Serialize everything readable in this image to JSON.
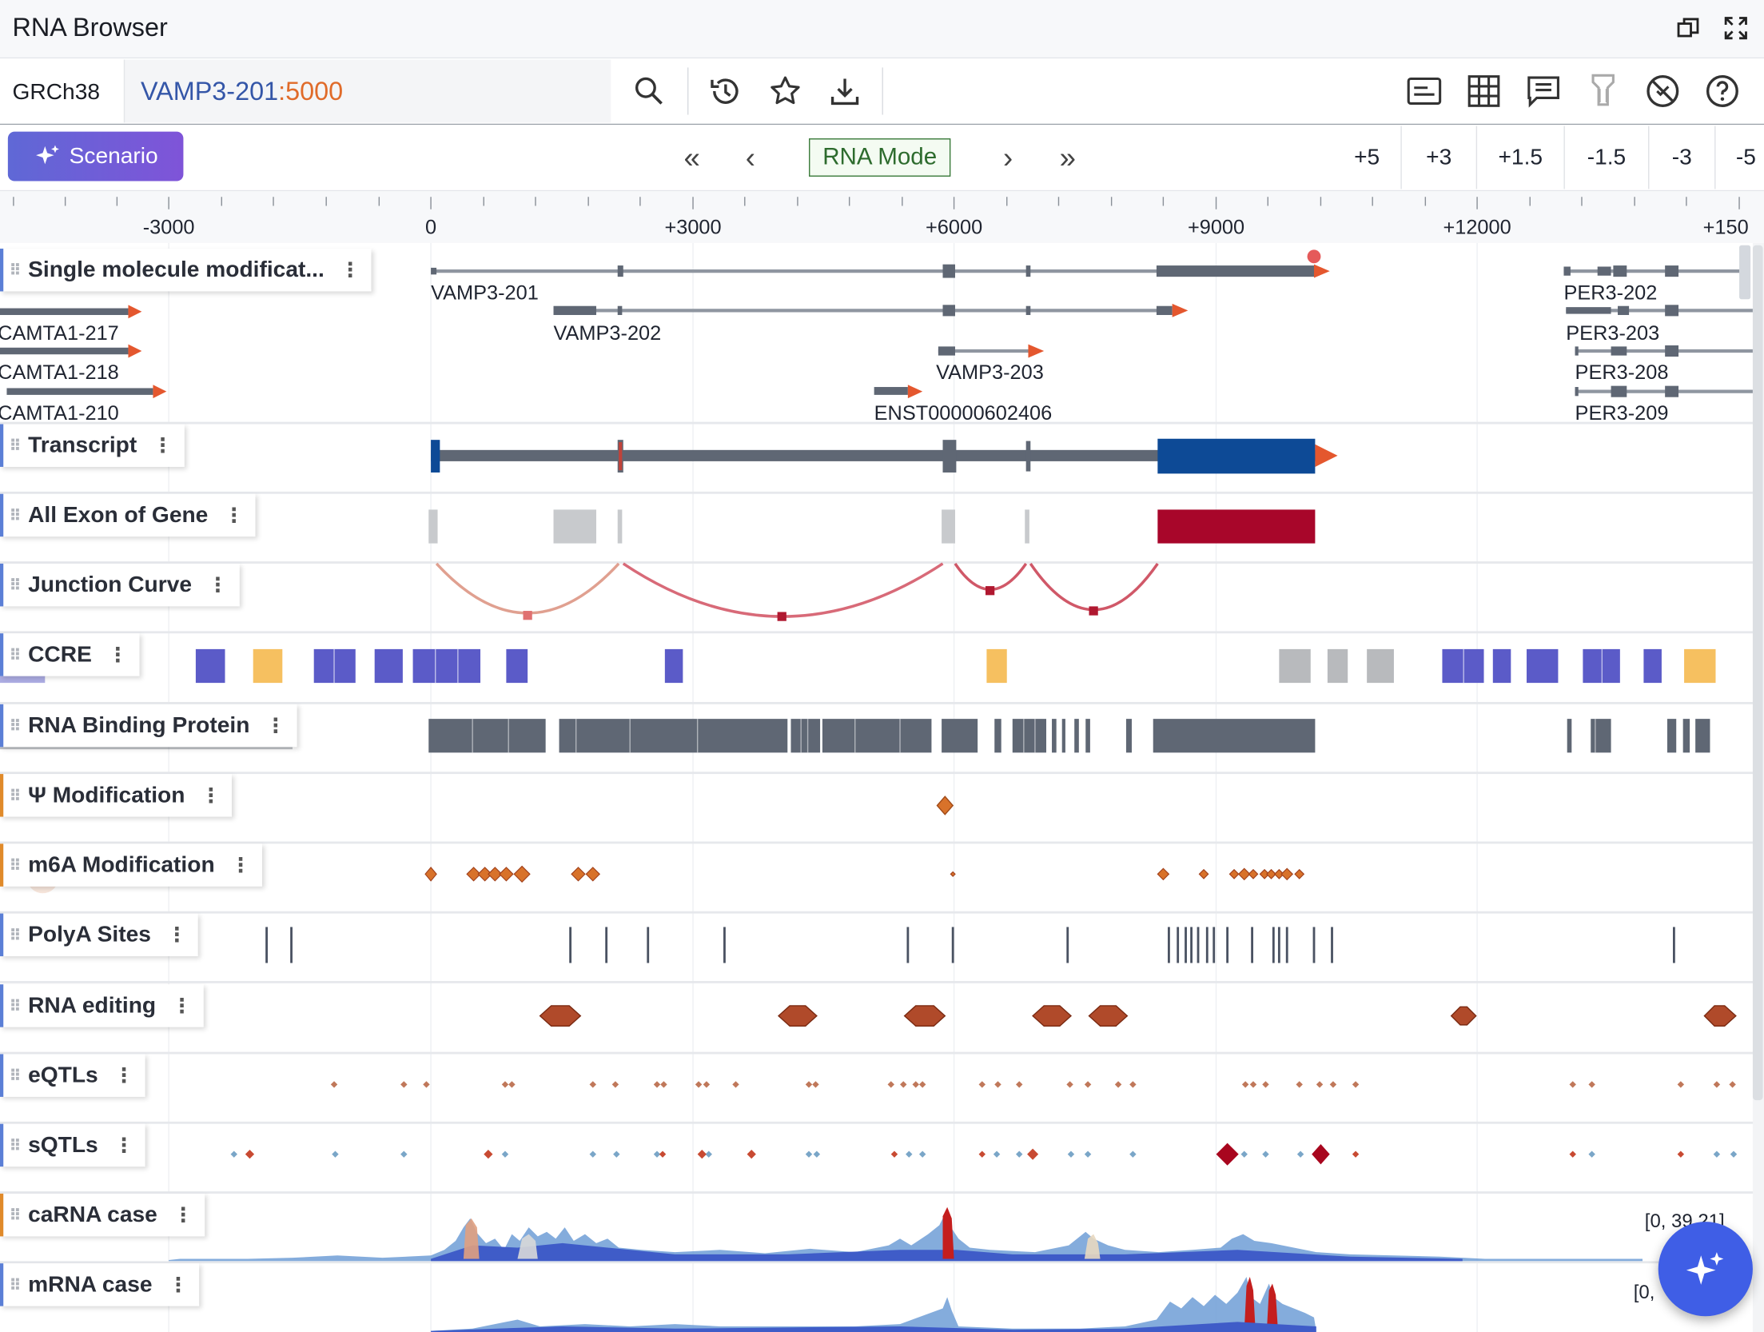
{
  "app": {
    "title": "RNA Browser"
  },
  "search": {
    "genome": "GRCh38",
    "transcript": "VAMP3-201",
    "separator": ":",
    "position": "5000"
  },
  "toolbar": {
    "scenario_label": "Scenario",
    "mode_label": "RNA Mode",
    "zoom_buttons": [
      "+5",
      "+3",
      "+1.5",
      "-1.5",
      "-3",
      "-5"
    ]
  },
  "ruler": {
    "ticks": [
      "-3000",
      "0",
      "+3000",
      "+6000",
      "+9000",
      "+12000",
      "+150"
    ]
  },
  "transcripts": {
    "vamp3_201": "VAMP3-201",
    "vamp3_202": "VAMP3-202",
    "vamp3_203": "VAMP3-203",
    "enst": "ENST00000602406",
    "camta1_217": "CAMTA1-217",
    "camta1_218": "CAMTA1-218",
    "camta1_210": "CAMTA1-210",
    "per3_202": "PER3-202",
    "per3_203": "PER3-203",
    "per3_208": "PER3-208",
    "per3_209": "PER3-209"
  },
  "tracks": [
    "Single molecule modificat...",
    "Transcript",
    "All Exon of Gene",
    "Junction Curve",
    "CCRE",
    "RNA Binding Protein",
    "Ψ Modification",
    "m6A Modification",
    "PolyA Sites",
    "RNA editing",
    "eQTLs",
    "sQTLs",
    "caRNA case",
    "mRNA case"
  ],
  "coverage": {
    "carna_range": "[0, 39.21]",
    "mrna_range": "[0,"
  },
  "colors": {
    "accent": "#6a5ad8",
    "exon_red": "#a8062a",
    "cds_blue": "#0d4a96",
    "gene_grey": "#6b7380",
    "arrow": "#e4572e",
    "ccre_blue": "#5b5bc8",
    "ccre_yellow": "#f6c060"
  },
  "icons": [
    "restore-icon",
    "fullscreen-icon",
    "search-icon",
    "history-icon",
    "star-icon",
    "download-icon",
    "list-icon",
    "grid-icon",
    "comment-icon",
    "filter-icon",
    "disable-icon",
    "help-icon",
    "sparkle-icon"
  ]
}
